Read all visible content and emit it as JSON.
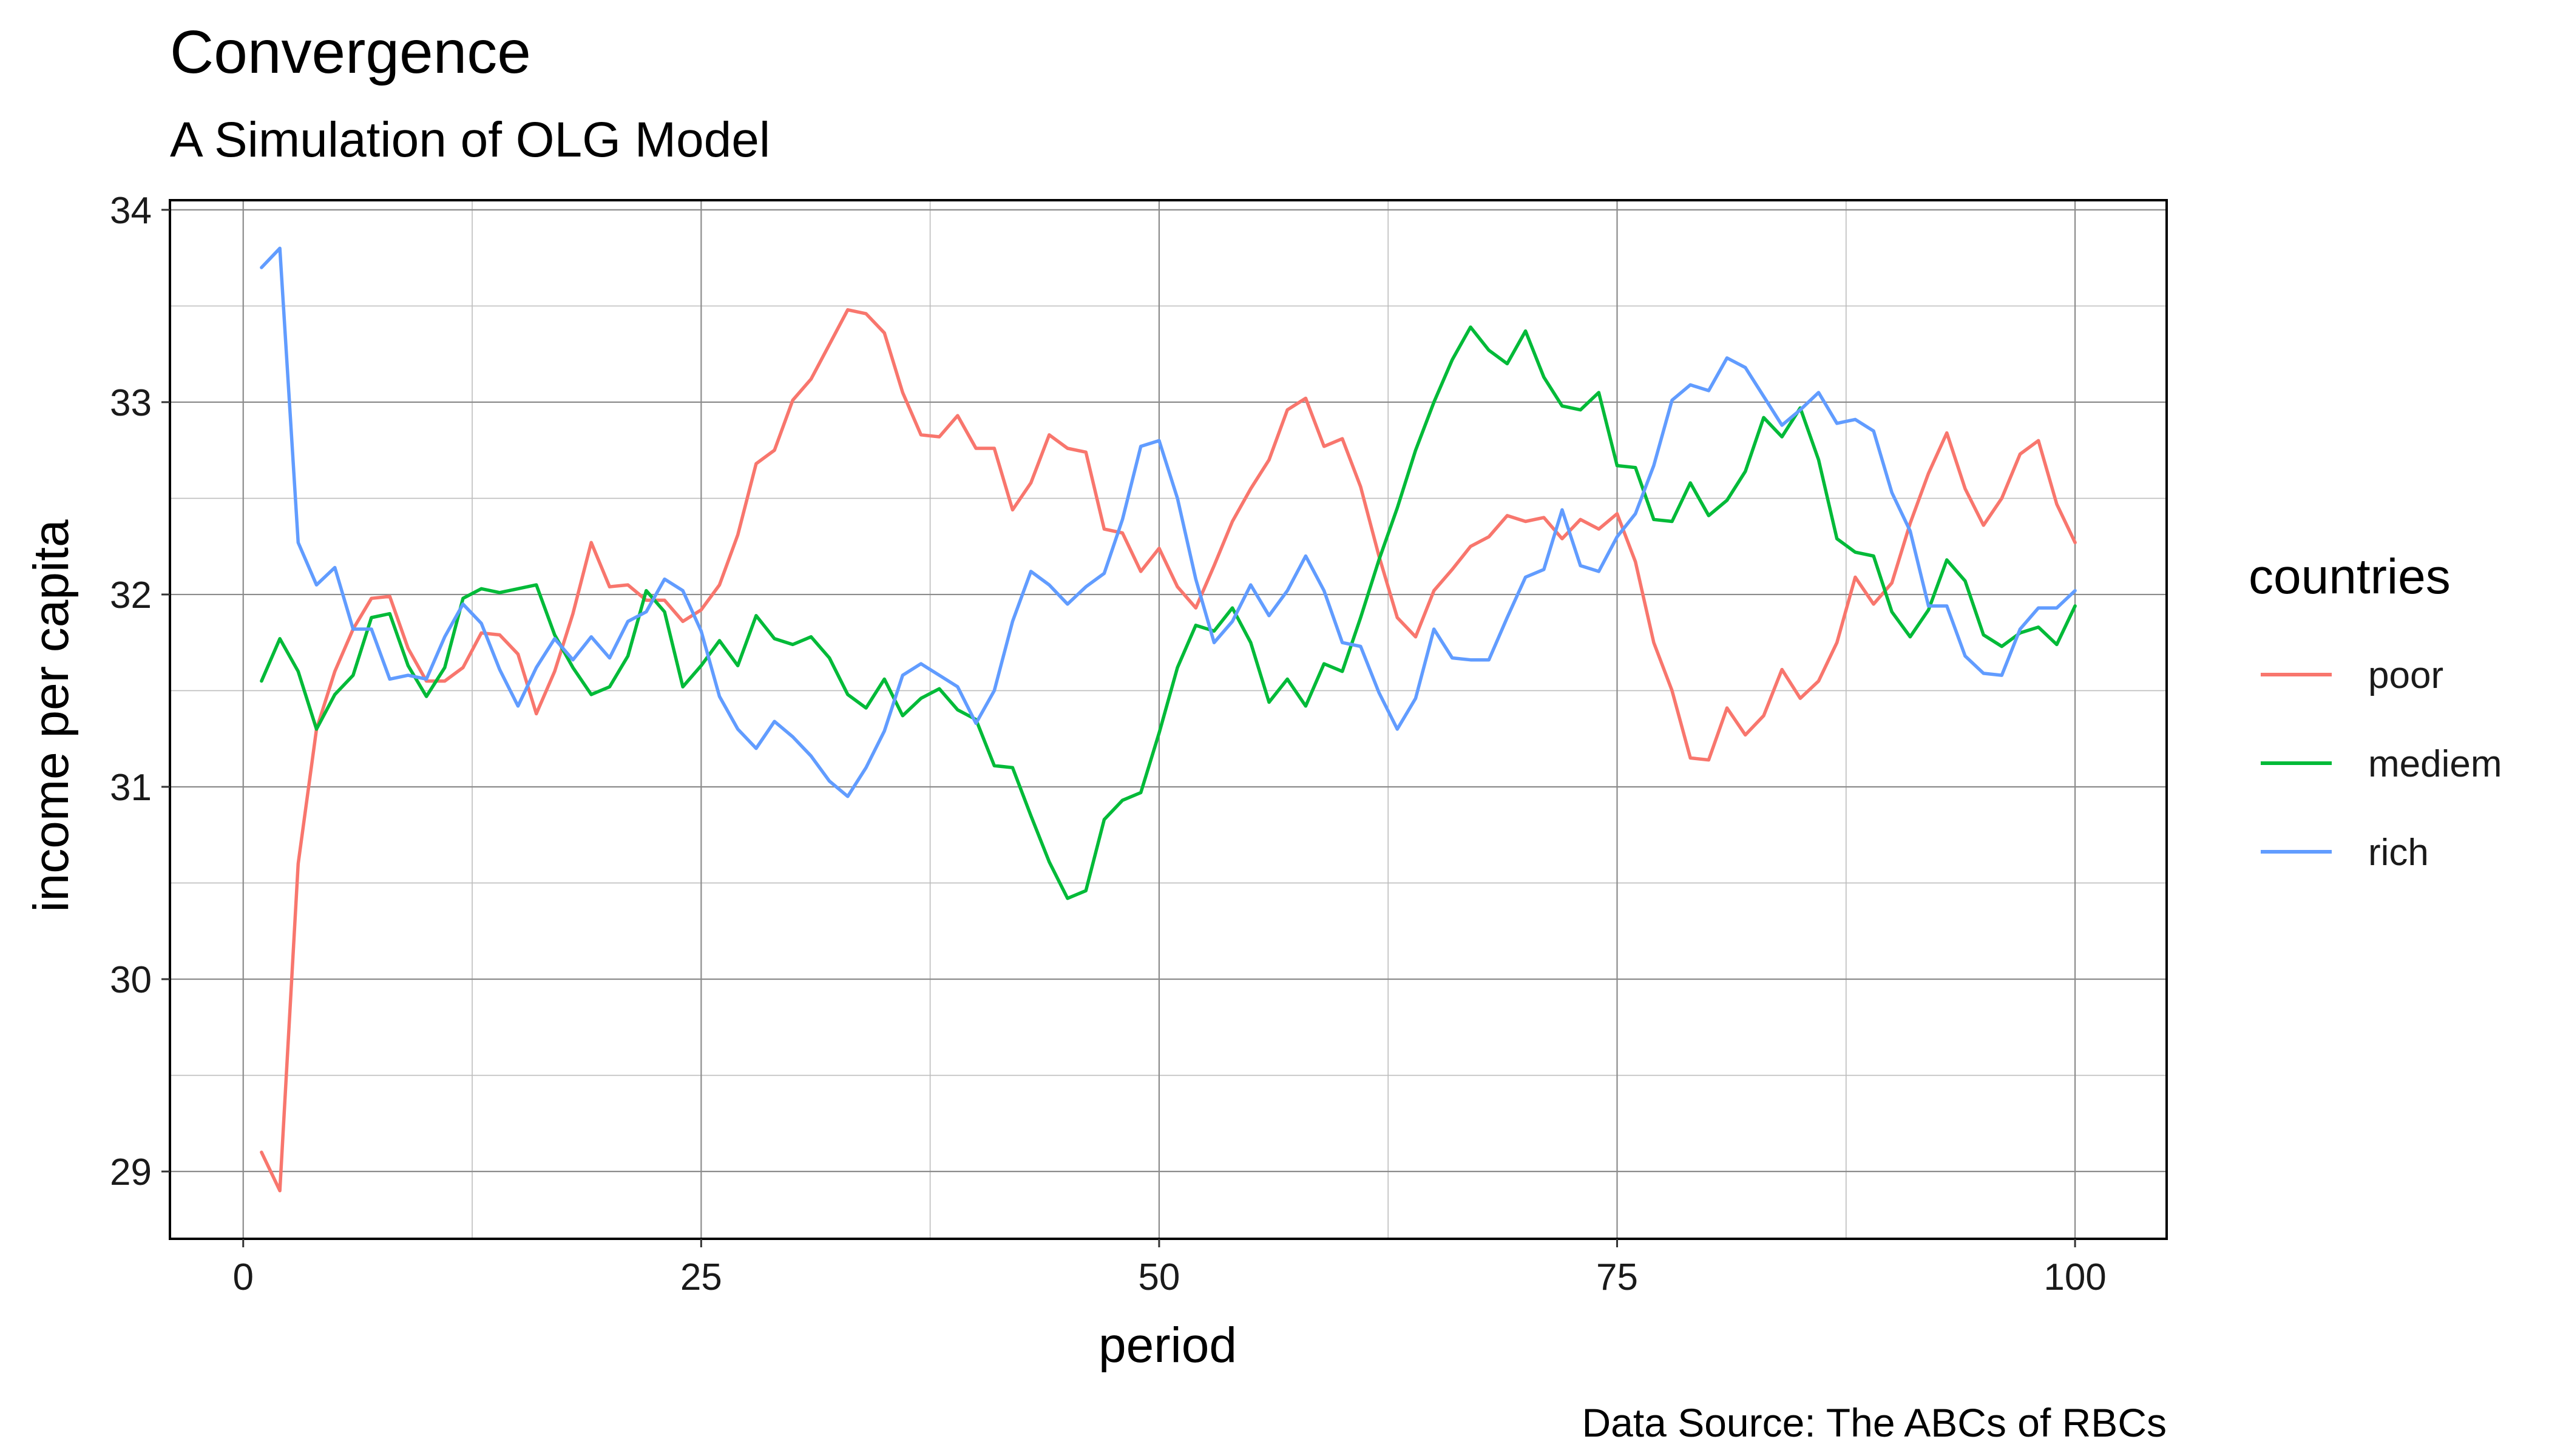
{
  "chart_data": {
    "type": "line",
    "title": "Convergence",
    "subtitle": "A Simulation of OLG Model",
    "xlabel": "period",
    "ylabel": "income per capita",
    "caption": "Data Source: The ABCs of RBCs",
    "legend_title": "countries",
    "legend_position": "right",
    "grid": true,
    "xlim": [
      -4,
      105
    ],
    "ylim": [
      28.65,
      34.05
    ],
    "xticks": [
      0,
      25,
      50,
      75,
      100
    ],
    "yticks": [
      29,
      30,
      31,
      32,
      33,
      34
    ],
    "x": [
      1,
      2,
      3,
      4,
      5,
      6,
      7,
      8,
      9,
      10,
      11,
      12,
      13,
      14,
      15,
      16,
      17,
      18,
      19,
      20,
      21,
      22,
      23,
      24,
      25,
      26,
      27,
      28,
      29,
      30,
      31,
      32,
      33,
      34,
      35,
      36,
      37,
      38,
      39,
      40,
      41,
      42,
      43,
      44,
      45,
      46,
      47,
      48,
      49,
      50,
      51,
      52,
      53,
      54,
      55,
      56,
      57,
      58,
      59,
      60,
      61,
      62,
      63,
      64,
      65,
      66,
      67,
      68,
      69,
      70,
      71,
      72,
      73,
      74,
      75,
      76,
      77,
      78,
      79,
      80,
      81,
      82,
      83,
      84,
      85,
      86,
      87,
      88,
      89,
      90,
      91,
      92,
      93,
      94,
      95,
      96,
      97,
      98,
      99,
      100
    ],
    "series": [
      {
        "name": "poor",
        "color": "#F8766D",
        "values": [
          29.1,
          28.9,
          30.6,
          31.3,
          31.6,
          31.82,
          31.98,
          31.99,
          31.72,
          31.55,
          31.55,
          31.62,
          31.8,
          31.79,
          31.69,
          31.38,
          31.6,
          31.9,
          32.27,
          32.04,
          32.05,
          31.97,
          31.97,
          31.86,
          31.92,
          32.05,
          32.31,
          32.68,
          32.75,
          33.01,
          33.12,
          33.3,
          33.48,
          33.46,
          33.36,
          33.05,
          32.83,
          32.82,
          32.93,
          32.76,
          32.76,
          32.44,
          32.58,
          32.83,
          32.76,
          32.74,
          32.34,
          32.32,
          32.12,
          32.24,
          32.04,
          31.93,
          32.15,
          32.38,
          32.55,
          32.7,
          32.96,
          33.02,
          32.77,
          32.81,
          32.56,
          32.2,
          31.88,
          31.78,
          32.02,
          32.13,
          32.25,
          32.3,
          32.41,
          32.38,
          32.4,
          32.29,
          32.39,
          32.34,
          32.42,
          32.17,
          31.75,
          31.5,
          31.15,
          31.14,
          31.41,
          31.27,
          31.37,
          31.61,
          31.46,
          31.55,
          31.75,
          32.09,
          31.95,
          32.06,
          32.37,
          32.63,
          32.84,
          32.55,
          32.36,
          32.5,
          32.73,
          32.8,
          32.47,
          32.27
        ]
      },
      {
        "name": "mediem",
        "color": "#00BA38",
        "values": [
          31.55,
          31.77,
          31.6,
          31.3,
          31.48,
          31.58,
          31.88,
          31.9,
          31.63,
          31.47,
          31.62,
          31.98,
          32.03,
          32.01,
          32.03,
          32.05,
          31.79,
          31.62,
          31.48,
          31.52,
          31.68,
          32.02,
          31.91,
          31.52,
          31.63,
          31.76,
          31.63,
          31.89,
          31.77,
          31.74,
          31.78,
          31.67,
          31.48,
          31.41,
          31.56,
          31.37,
          31.46,
          31.51,
          31.4,
          31.35,
          31.11,
          31.1,
          30.85,
          30.61,
          30.42,
          30.46,
          30.83,
          30.93,
          30.97,
          31.28,
          31.62,
          31.84,
          31.81,
          31.93,
          31.75,
          31.44,
          31.56,
          31.42,
          31.64,
          31.6,
          31.88,
          32.18,
          32.45,
          32.75,
          33.0,
          33.22,
          33.39,
          33.27,
          33.2,
          33.37,
          33.13,
          32.98,
          32.96,
          33.05,
          32.67,
          32.66,
          32.39,
          32.38,
          32.58,
          32.41,
          32.49,
          32.64,
          32.92,
          32.82,
          32.97,
          32.7,
          32.29,
          32.22,
          32.2,
          31.91,
          31.78,
          31.92,
          32.18,
          32.07,
          31.79,
          31.73,
          31.8,
          31.83,
          31.74,
          31.94
        ]
      },
      {
        "name": "rich",
        "color": "#619CFF",
        "values": [
          33.7,
          33.8,
          32.27,
          32.05,
          32.14,
          31.82,
          31.82,
          31.56,
          31.58,
          31.56,
          31.78,
          31.95,
          31.85,
          31.61,
          31.42,
          31.62,
          31.77,
          31.66,
          31.78,
          31.67,
          31.86,
          31.91,
          32.08,
          32.02,
          31.81,
          31.47,
          31.3,
          31.2,
          31.34,
          31.26,
          31.16,
          31.03,
          30.95,
          31.1,
          31.29,
          31.58,
          31.64,
          31.58,
          31.52,
          31.33,
          31.5,
          31.86,
          32.12,
          32.05,
          31.95,
          32.04,
          32.11,
          32.39,
          32.77,
          32.8,
          32.5,
          32.08,
          31.75,
          31.86,
          32.05,
          31.89,
          32.02,
          32.2,
          32.02,
          31.75,
          31.73,
          31.49,
          31.3,
          31.46,
          31.82,
          31.67,
          31.66,
          31.66,
          31.88,
          32.09,
          32.13,
          32.44,
          32.15,
          32.12,
          32.3,
          32.42,
          32.67,
          33.01,
          33.09,
          33.06,
          33.23,
          33.18,
          33.03,
          32.88,
          32.96,
          33.05,
          32.89,
          32.91,
          32.85,
          32.53,
          32.33,
          31.94,
          31.94,
          31.68,
          31.59,
          31.58,
          31.82,
          31.93,
          31.93,
          32.02
        ]
      }
    ]
  }
}
